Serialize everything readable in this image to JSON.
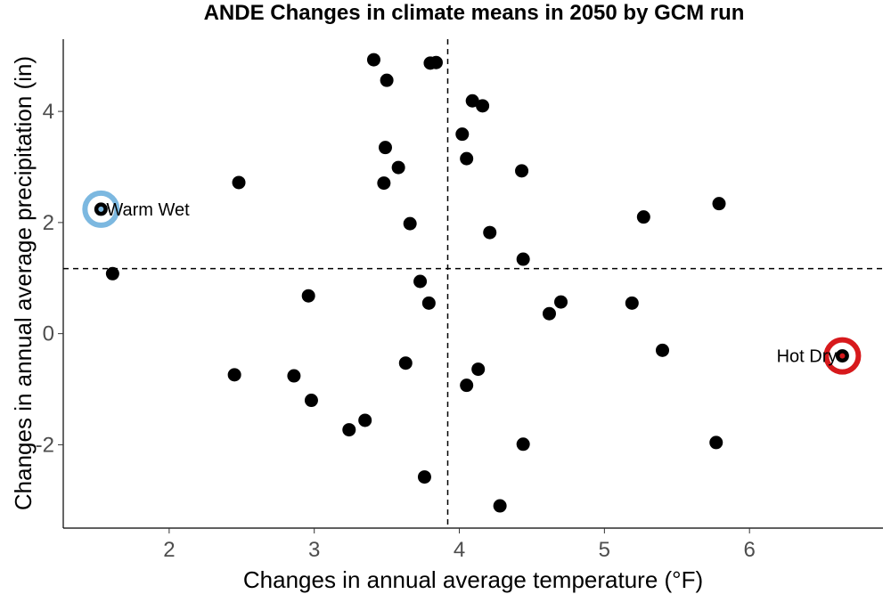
{
  "chart_data": {
    "type": "scatter",
    "title": "ANDE Changes in climate means in 2050 by GCM run",
    "xlabel": "Changes in annual average temperature (°F)",
    "ylabel": "Changes in annual average precipitation (in)",
    "xlim": [
      1.27,
      6.92
    ],
    "ylim": [
      -3.5,
      5.3
    ],
    "x_ticks": [
      2,
      3,
      4,
      5,
      6
    ],
    "y_ticks": [
      -2,
      0,
      2,
      4
    ],
    "x_tick_labels": [
      "2",
      "3",
      "4",
      "5",
      "6"
    ],
    "y_tick_labels": [
      "-2",
      "0",
      "2",
      "4"
    ],
    "grid": false,
    "reference_lines": {
      "x": 3.92,
      "y": 1.17,
      "style": "dashed"
    },
    "points": [
      {
        "x": 3.41,
        "y": 4.93
      },
      {
        "x": 3.8,
        "y": 4.87
      },
      {
        "x": 3.84,
        "y": 4.88
      },
      {
        "x": 3.5,
        "y": 4.56
      },
      {
        "x": 4.09,
        "y": 4.19
      },
      {
        "x": 4.16,
        "y": 4.1
      },
      {
        "x": 4.02,
        "y": 3.59
      },
      {
        "x": 3.49,
        "y": 3.35
      },
      {
        "x": 4.05,
        "y": 3.15
      },
      {
        "x": 3.58,
        "y": 2.99
      },
      {
        "x": 4.43,
        "y": 2.93
      },
      {
        "x": 2.48,
        "y": 2.72
      },
      {
        "x": 3.48,
        "y": 2.71
      },
      {
        "x": 5.79,
        "y": 2.34
      },
      {
        "x": 5.27,
        "y": 2.1
      },
      {
        "x": 3.66,
        "y": 1.98
      },
      {
        "x": 4.21,
        "y": 1.82
      },
      {
        "x": 4.44,
        "y": 1.34
      },
      {
        "x": 1.61,
        "y": 1.08
      },
      {
        "x": 3.73,
        "y": 0.94
      },
      {
        "x": 2.96,
        "y": 0.68
      },
      {
        "x": 3.79,
        "y": 0.55
      },
      {
        "x": 4.7,
        "y": 0.57
      },
      {
        "x": 5.19,
        "y": 0.55
      },
      {
        "x": 4.62,
        "y": 0.36
      },
      {
        "x": 5.4,
        "y": -0.3
      },
      {
        "x": 3.63,
        "y": -0.53
      },
      {
        "x": 4.13,
        "y": -0.64
      },
      {
        "x": 2.45,
        "y": -0.74
      },
      {
        "x": 2.86,
        "y": -0.76
      },
      {
        "x": 4.05,
        "y": -0.93
      },
      {
        "x": 2.98,
        "y": -1.2
      },
      {
        "x": 3.35,
        "y": -1.56
      },
      {
        "x": 3.24,
        "y": -1.73
      },
      {
        "x": 5.77,
        "y": -1.96
      },
      {
        "x": 4.44,
        "y": -1.99
      },
      {
        "x": 3.76,
        "y": -2.58
      },
      {
        "x": 4.28,
        "y": -3.1
      }
    ],
    "highlights": [
      {
        "label": "Warm Wet",
        "x": 1.53,
        "y": 2.24,
        "ring_color": "#7cb8e0",
        "inner_color": "#7cb8e0",
        "label_side": "right"
      },
      {
        "label": "Hot Dry",
        "x": 6.64,
        "y": -0.4,
        "ring_color": "#d7191c",
        "inner_color": "#d7191c",
        "label_side": "left"
      }
    ],
    "point_color": "#000000"
  }
}
